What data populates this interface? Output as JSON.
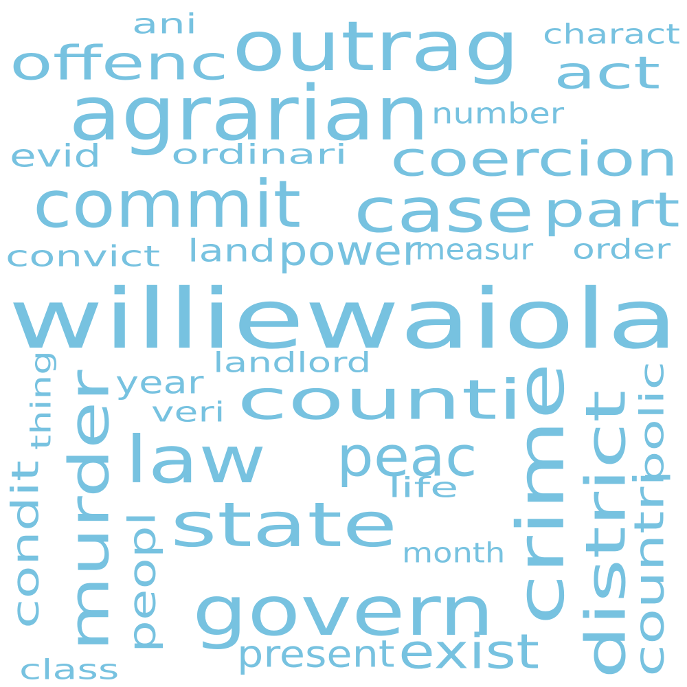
{
  "colors": {
    "background": "#ffffff",
    "word": "#77c2e0"
  },
  "words": [
    {
      "id": "williewaiola",
      "text": "williewaiola",
      "rotated": false
    },
    {
      "id": "agrarian",
      "text": "agrarian",
      "rotated": false
    },
    {
      "id": "outrag",
      "text": "outrag",
      "rotated": false
    },
    {
      "id": "offenc",
      "text": "offenc",
      "rotated": false
    },
    {
      "id": "commit",
      "text": "commit",
      "rotated": false
    },
    {
      "id": "case",
      "text": "case",
      "rotated": false
    },
    {
      "id": "part",
      "text": "part",
      "rotated": false
    },
    {
      "id": "coercion",
      "text": "coercion",
      "rotated": false
    },
    {
      "id": "act",
      "text": "act",
      "rotated": false
    },
    {
      "id": "ani",
      "text": "ani",
      "rotated": false
    },
    {
      "id": "charact",
      "text": "charact",
      "rotated": false
    },
    {
      "id": "number",
      "text": "number",
      "rotated": false
    },
    {
      "id": "ordinari",
      "text": "ordinari",
      "rotated": false
    },
    {
      "id": "evid",
      "text": "evid",
      "rotated": false
    },
    {
      "id": "power",
      "text": "power",
      "rotated": false
    },
    {
      "id": "measur",
      "text": "measur",
      "rotated": false
    },
    {
      "id": "order",
      "text": "order",
      "rotated": false
    },
    {
      "id": "convict",
      "text": "convict",
      "rotated": false
    },
    {
      "id": "land",
      "text": "land",
      "rotated": false
    },
    {
      "id": "counti",
      "text": "counti",
      "rotated": false
    },
    {
      "id": "landlord",
      "text": "landlord",
      "rotated": false
    },
    {
      "id": "year",
      "text": "year",
      "rotated": false
    },
    {
      "id": "veri",
      "text": "veri",
      "rotated": false
    },
    {
      "id": "law",
      "text": "law",
      "rotated": false
    },
    {
      "id": "peac",
      "text": "peac",
      "rotated": false
    },
    {
      "id": "life",
      "text": "life",
      "rotated": false
    },
    {
      "id": "state",
      "text": "state",
      "rotated": false
    },
    {
      "id": "month",
      "text": "month",
      "rotated": false
    },
    {
      "id": "govern",
      "text": "govern",
      "rotated": false
    },
    {
      "id": "present",
      "text": "present",
      "rotated": false
    },
    {
      "id": "exist",
      "text": "exist",
      "rotated": false
    },
    {
      "id": "class",
      "text": "class",
      "rotated": false
    },
    {
      "id": "murder",
      "text": "murder",
      "rotated": true
    },
    {
      "id": "crime",
      "text": "crime",
      "rotated": true
    },
    {
      "id": "district",
      "text": "district",
      "rotated": true
    },
    {
      "id": "countri",
      "text": "countri",
      "rotated": true
    },
    {
      "id": "polic",
      "text": "polic",
      "rotated": true
    },
    {
      "id": "condit",
      "text": "condit",
      "rotated": true
    },
    {
      "id": "thing",
      "text": "thing",
      "rotated": true
    },
    {
      "id": "peopl",
      "text": "peopl",
      "rotated": true
    }
  ]
}
